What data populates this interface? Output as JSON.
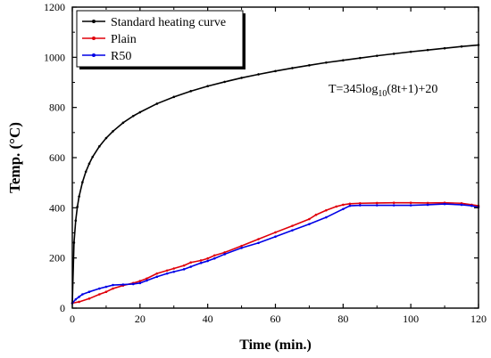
{
  "chart_data": {
    "type": "line",
    "title": "",
    "xlabel": "Time (min.)",
    "ylabel": "Temp. (°C)",
    "xlim": [
      0,
      120
    ],
    "ylim": [
      0,
      1200
    ],
    "x_ticks": [
      0,
      20,
      40,
      60,
      80,
      100,
      120
    ],
    "y_ticks": [
      0,
      200,
      400,
      600,
      800,
      1000,
      1200
    ],
    "grid": false,
    "legend_position": "top-left",
    "annotation": {
      "prefix": "T=345log",
      "subscript": "10",
      "suffix": "(8t+1)+20"
    },
    "series": [
      {
        "name": "Standard heating curve",
        "color": "#000000",
        "marker": "dot",
        "formula": "345*log10(8t+1)+20",
        "x": [
          0,
          0.5,
          1,
          1.5,
          2,
          3,
          4,
          5,
          6,
          8,
          10,
          12,
          15,
          18,
          20,
          25,
          30,
          35,
          40,
          45,
          50,
          55,
          60,
          65,
          70,
          75,
          80,
          85,
          90,
          95,
          100,
          105,
          110,
          115,
          120
        ],
        "y": [
          20,
          261,
          349,
          404,
          445,
          502,
          544,
          576,
          603,
          645,
          678,
          705,
          739,
          766,
          781,
          815,
          842,
          865,
          885,
          902,
          918,
          932,
          945,
          957,
          968,
          979,
          988,
          997,
          1006,
          1014,
          1022,
          1029,
          1036,
          1043,
          1049
        ]
      },
      {
        "name": "Plain",
        "color": "#e0000a",
        "marker": "dot",
        "x": [
          0,
          2,
          5,
          8,
          10,
          12,
          15,
          18,
          20,
          22,
          25,
          28,
          30,
          33,
          35,
          38,
          40,
          42,
          45,
          50,
          55,
          60,
          65,
          70,
          72,
          75,
          78,
          80,
          82,
          85,
          90,
          95,
          100,
          105,
          110,
          115,
          118,
          120
        ],
        "y": [
          20,
          25,
          38,
          55,
          65,
          78,
          90,
          100,
          108,
          118,
          138,
          150,
          158,
          170,
          182,
          190,
          198,
          210,
          222,
          248,
          275,
          302,
          328,
          355,
          372,
          390,
          405,
          412,
          416,
          418,
          419,
          420,
          420,
          419,
          420,
          418,
          412,
          408
        ]
      },
      {
        "name": "R50",
        "color": "#0000e6",
        "marker": "dot",
        "x": [
          0,
          1,
          2,
          3,
          5,
          8,
          10,
          12,
          15,
          18,
          20,
          22,
          25,
          28,
          30,
          33,
          35,
          38,
          40,
          42,
          45,
          50,
          55,
          60,
          65,
          70,
          75,
          80,
          82,
          85,
          90,
          95,
          100,
          105,
          110,
          115,
          118,
          120
        ],
        "y": [
          20,
          35,
          45,
          55,
          65,
          78,
          85,
          92,
          94,
          96,
          100,
          110,
          125,
          138,
          145,
          155,
          165,
          180,
          188,
          198,
          215,
          240,
          260,
          285,
          310,
          335,
          362,
          395,
          408,
          410,
          410,
          410,
          410,
          412,
          415,
          412,
          408,
          402
        ]
      }
    ]
  }
}
